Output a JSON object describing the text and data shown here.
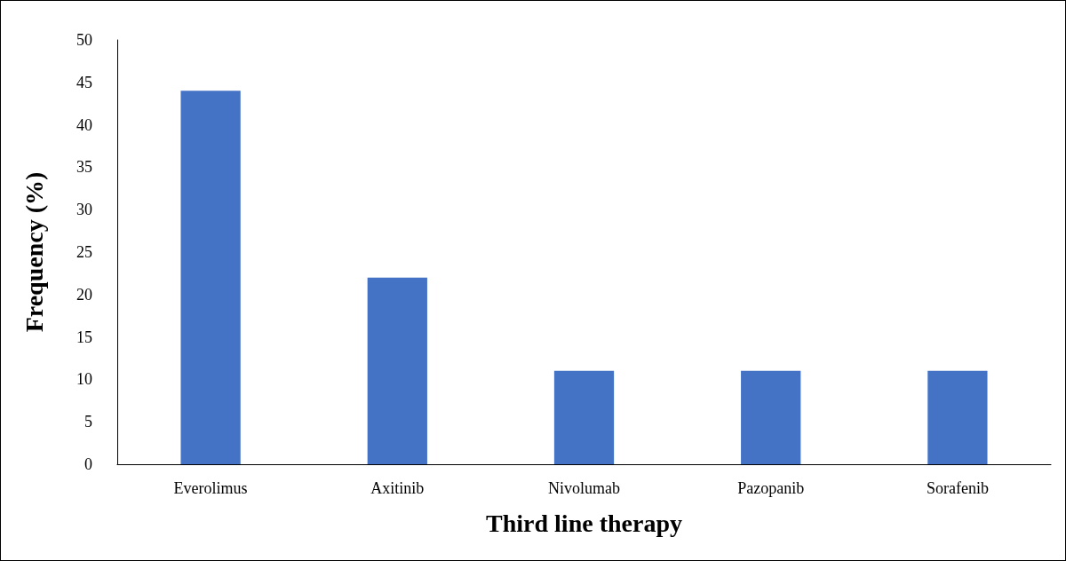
{
  "chart_data": {
    "type": "bar",
    "xlabel": "Third line therapy",
    "ylabel": "Frequency (%)",
    "categories": [
      "Everolimus",
      "Axitinib",
      "Nivolumab",
      "Pazopanib",
      "Sorafenib"
    ],
    "values": [
      44,
      22,
      11,
      11,
      11
    ],
    "color": "#4472c4",
    "ylim": [
      0,
      50
    ],
    "yticks": [
      0,
      5,
      10,
      15,
      20,
      25,
      30,
      35,
      40,
      45,
      50
    ],
    "grid": false
  }
}
